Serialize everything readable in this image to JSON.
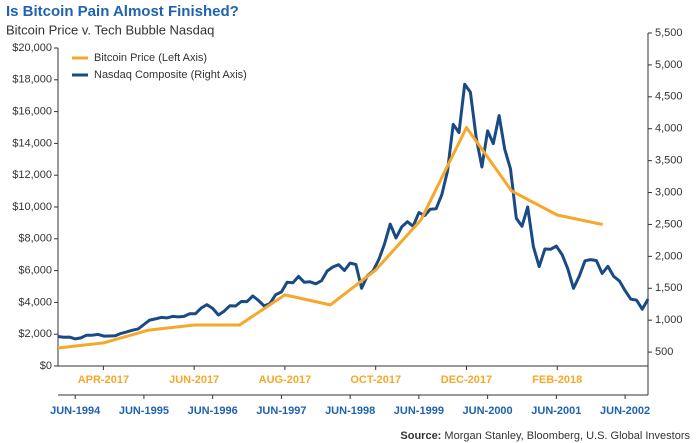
{
  "chart_data": {
    "type": "line",
    "title": "Is Bitcoin Pain Almost Finished?",
    "subtitle": "Bitcoin Price v. Tech Bubble Nasdaq",
    "source_label": "Source:",
    "source": "Morgan Stanley, Bloomberg, U.S. Global Investors",
    "legend": "upper left",
    "ylim": [
      0,
      20000
    ],
    "yticks": [
      {
        "value": 0,
        "label": "$0"
      },
      {
        "value": 2000,
        "label": "$2,000"
      },
      {
        "value": 4000,
        "label": "$4,000"
      },
      {
        "value": 6000,
        "label": "$6,000"
      },
      {
        "value": 8000,
        "label": "$8,000"
      },
      {
        "value": 10000,
        "label": "$10,000"
      },
      {
        "value": 12000,
        "label": "$12,000"
      },
      {
        "value": 14000,
        "label": "$14,000"
      },
      {
        "value": 16000,
        "label": "$16,000"
      },
      {
        "value": 18000,
        "label": "$18,000"
      },
      {
        "value": 20000,
        "label": "$20,000"
      }
    ],
    "y2lim": [
      0,
      5500
    ],
    "y2ticks": [
      500,
      {
        "value": 1000,
        "label": "1,000"
      },
      {
        "value": 1500,
        "label": "1,500"
      },
      {
        "value": 2000,
        "label": "2,000"
      },
      {
        "value": 2500,
        "label": "2,500"
      },
      {
        "value": 3000,
        "label": "3,000"
      },
      {
        "value": 3500,
        "label": "3,500"
      },
      {
        "value": 4000,
        "label": "4,000"
      },
      {
        "value": 4500,
        "label": "4,500"
      },
      {
        "value": 5000,
        "label": "5,000"
      },
      {
        "value": 5500,
        "label": "5,500"
      }
    ],
    "x2lim": [
      "2017-03",
      "2018-04"
    ],
    "x2ticks": [
      {
        "value": "2017-04",
        "label": "APR-2017"
      },
      {
        "value": "2017-06",
        "label": "JUN-2017"
      },
      {
        "value": "2017-08",
        "label": "AUG-2017"
      },
      {
        "value": "2017-10",
        "label": "OCT-2017"
      },
      {
        "value": "2017-12",
        "label": "DEC-2017"
      },
      {
        "value": "2018-02",
        "label": "FEB-2018"
      }
    ],
    "xlim": [
      "1994-03",
      "2002-10"
    ],
    "xticks": [
      {
        "value": "1994-06",
        "label": "JUN-1994"
      },
      {
        "value": "1995-06",
        "label": "JUN-1995"
      },
      {
        "value": "1996-06",
        "label": "JUN-1996"
      },
      {
        "value": "1997-06",
        "label": "JUN-1997"
      },
      {
        "value": "1998-06",
        "label": "JUN-1998"
      },
      {
        "value": "1999-06",
        "label": "JUN-1999"
      },
      {
        "value": "2000-06",
        "label": "JUN-2000"
      },
      {
        "value": "2001-06",
        "label": "JUN-2001"
      },
      {
        "value": "2002-06",
        "label": "JUN-2002"
      }
    ],
    "series": [
      {
        "name": "Bitcoin Price (Left Axis)",
        "color": "#f5a82a",
        "x": [
          "2017-03",
          "2017-04",
          "2017-05",
          "2017-06",
          "2017-07",
          "2017-08",
          "2017-09",
          "2017-10",
          "2017-11",
          "2017-12",
          "2018-01",
          "2018-02",
          "2018-03"
        ],
        "values": [
          1130,
          1450,
          2260,
          2580,
          2580,
          4470,
          3840,
          6040,
          9200,
          15000,
          11000,
          9500,
          8900
        ]
      },
      {
        "name": "Nasdaq Composite (Right Axis)",
        "color": "#1a4a85",
        "axis": "y2",
        "x": [
          "1994-03",
          "1994-04",
          "1994-05",
          "1994-06",
          "1994-07",
          "1994-08",
          "1994-09",
          "1994-10",
          "1994-11",
          "1994-12",
          "1995-01",
          "1995-02",
          "1995-03",
          "1995-04",
          "1995-05",
          "1995-06",
          "1995-07",
          "1995-08",
          "1995-09",
          "1995-10",
          "1995-11",
          "1995-12",
          "1996-01",
          "1996-02",
          "1996-03",
          "1996-04",
          "1996-05",
          "1996-06",
          "1996-07",
          "1996-08",
          "1996-09",
          "1996-10",
          "1996-11",
          "1996-12",
          "1997-01",
          "1997-02",
          "1997-03",
          "1997-04",
          "1997-05",
          "1997-06",
          "1997-07",
          "1997-08",
          "1997-09",
          "1997-10",
          "1997-11",
          "1997-12",
          "1998-01",
          "1998-02",
          "1998-03",
          "1998-04",
          "1998-05",
          "1998-06",
          "1998-07",
          "1998-08",
          "1998-09",
          "1998-10",
          "1998-11",
          "1998-12",
          "1999-01",
          "1999-02",
          "1999-03",
          "1999-04",
          "1999-05",
          "1999-06",
          "1999-07",
          "1999-08",
          "1999-09",
          "1999-10",
          "1999-11",
          "1999-12",
          "2000-01",
          "2000-02",
          "2000-03",
          "2000-04",
          "2000-05",
          "2000-06",
          "2000-07",
          "2000-08",
          "2000-09",
          "2000-10",
          "2000-11",
          "2000-12",
          "2001-01",
          "2001-02",
          "2001-03",
          "2001-04",
          "2001-05",
          "2001-06",
          "2001-07",
          "2001-08",
          "2001-09",
          "2001-10",
          "2001-11",
          "2001-12",
          "2002-01",
          "2002-02",
          "2002-03",
          "2002-04",
          "2002-05",
          "2002-06",
          "2002-07",
          "2002-08",
          "2002-09",
          "2002-10"
        ],
        "values": [
          745,
          733,
          735,
          706,
          722,
          765,
          764,
          777,
          750,
          752,
          755,
          793,
          817,
          843,
          864,
          933,
          1001,
          1020,
          1044,
          1036,
          1059,
          1052,
          1059,
          1100,
          1101,
          1191,
          1243,
          1185,
          1081,
          1141,
          1226,
          1222,
          1293,
          1291,
          1380,
          1309,
          1222,
          1261,
          1400,
          1442,
          1594,
          1587,
          1686,
          1593,
          1601,
          1570,
          1619,
          1771,
          1835,
          1869,
          1779,
          1895,
          1873,
          1499,
          1694,
          1771,
          1950,
          2193,
          2505,
          2288,
          2461,
          2543,
          2471,
          2686,
          2638,
          2739,
          2746,
          2966,
          3336,
          4069,
          3940,
          4697,
          4573,
          3861,
          3401,
          3966,
          3767,
          4206,
          3673,
          3370,
          2598,
          2471,
          2773,
          2152,
          1840,
          2116,
          2110,
          2161,
          2027,
          1805,
          1499,
          1690,
          1931,
          1950,
          1934,
          1731,
          1845,
          1688,
          1616,
          1463,
          1328,
          1315,
          1172,
          1330
        ]
      }
    ]
  }
}
